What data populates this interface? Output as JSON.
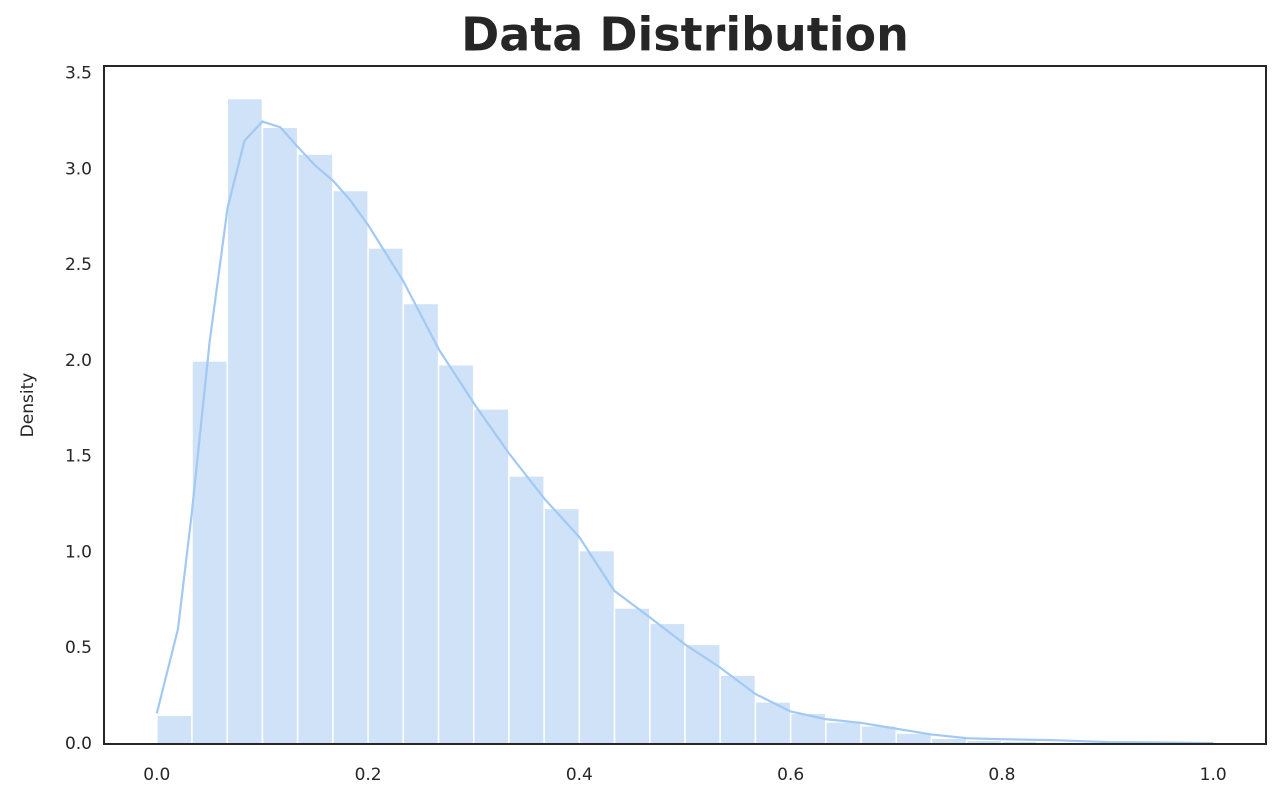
{
  "chart_data": {
    "type": "histogram",
    "title": "Data Distribution",
    "y_label": "Density",
    "bins": [
      0,
      0.0333,
      0.0667,
      0.1,
      0.1333,
      0.1667,
      0.2,
      0.2333,
      0.2667,
      0.3,
      0.3333,
      0.3667,
      0.4,
      0.4333,
      0.4667,
      0.5,
      0.5333,
      0.5667,
      0.6,
      0.6333,
      0.6667,
      0.7,
      0.7333,
      0.7667,
      0.8,
      0.8333,
      0.8667,
      0.9,
      0.9333,
      0.9667,
      1.0
    ],
    "values": [
      0.15,
      2.0,
      3.37,
      3.22,
      3.08,
      2.89,
      2.59,
      2.3,
      1.98,
      1.75,
      1.4,
      1.23,
      1.01,
      0.71,
      0.63,
      0.52,
      0.36,
      0.22,
      0.16,
      0.115,
      0.095,
      0.057,
      0.03,
      0.02,
      0.015,
      0.01,
      0.01,
      0.005,
      0.005,
      0.005
    ],
    "color": "#cfe2f8",
    "edge_color": "#ffffff",
    "kde": {
      "color": "#a1c9f4",
      "x": [
        0,
        0.02,
        0.033,
        0.05,
        0.067,
        0.083,
        0.1,
        0.117,
        0.133,
        0.15,
        0.167,
        0.183,
        0.2,
        0.233,
        0.267,
        0.3,
        0.333,
        0.367,
        0.4,
        0.433,
        0.467,
        0.5,
        0.533,
        0.567,
        0.6,
        0.633,
        0.667,
        0.7,
        0.733,
        0.767,
        0.8,
        0.85,
        0.9,
        0.95,
        1.0
      ],
      "values": [
        0.16,
        0.6,
        1.2,
        2.1,
        2.8,
        3.15,
        3.25,
        3.22,
        3.12,
        3.02,
        2.94,
        2.84,
        2.71,
        2.42,
        2.06,
        1.78,
        1.52,
        1.28,
        1.08,
        0.8,
        0.66,
        0.52,
        0.4,
        0.26,
        0.17,
        0.13,
        0.11,
        0.08,
        0.05,
        0.03,
        0.025,
        0.02,
        0.01,
        0.008,
        0.005
      ]
    },
    "xlim": [
      -0.05,
      1.05
    ],
    "ylim": [
      0,
      3.54
    ],
    "xticks": [
      {
        "value": 0,
        "label": "0.0"
      },
      0.2,
      0.4,
      0.6,
      0.8,
      {
        "value": 1,
        "label": "1.0"
      }
    ],
    "yticks": [
      {
        "value": 0,
        "label": "0.0"
      },
      0.5,
      {
        "value": 1,
        "label": "1.0"
      },
      1.5,
      {
        "value": 2,
        "label": "2.0"
      },
      2.5,
      {
        "value": 3,
        "label": "3.0"
      },
      3.5
    ],
    "grid": false
  }
}
